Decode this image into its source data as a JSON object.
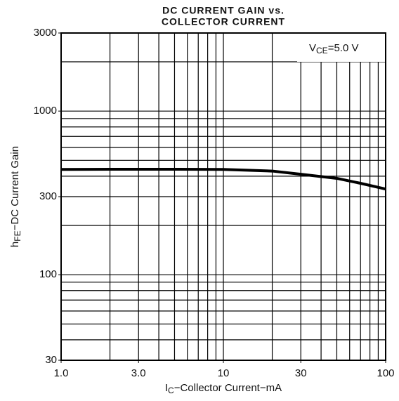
{
  "chart_data": {
    "type": "line",
    "title": [
      "DC CURRENT GAIN vs.",
      "COLLECTOR CURRENT"
    ],
    "x_label": {
      "symbol": "I",
      "subscript": "C",
      "text": "−Collector Current−mA"
    },
    "y_label": {
      "symbol": "h",
      "subscript": "FE",
      "text": "−DC Current Gain"
    },
    "annotation": {
      "symbol": "V",
      "subscript": "CE",
      "text": "=5.0 V"
    },
    "xscale": "log",
    "yscale": "log",
    "xlim": [
      1,
      100
    ],
    "ylim": [
      30,
      3000
    ],
    "xticks": [
      {
        "value": 1,
        "label": "1.0"
      },
      {
        "value": 3,
        "label": "3.0"
      },
      10,
      30,
      100
    ],
    "yticks": [
      30,
      100,
      300,
      1000,
      3000
    ],
    "xgrid": [
      1,
      2,
      3,
      4,
      5,
      6,
      7,
      8,
      9,
      10,
      20,
      30,
      40,
      50,
      60,
      70,
      80,
      90,
      100
    ],
    "ygrid": [
      30,
      40,
      50,
      60,
      70,
      80,
      90,
      100,
      200,
      300,
      400,
      500,
      600,
      700,
      800,
      900,
      1000,
      2000,
      3000
    ],
    "grid": true,
    "x": [
      1,
      2,
      5,
      10,
      20,
      30,
      50,
      70,
      100
    ],
    "series": [
      {
        "color": "#000000",
        "values": [
          440,
          441,
          441,
          440,
          430,
          411,
          388,
          362,
          334
        ]
      }
    ]
  }
}
